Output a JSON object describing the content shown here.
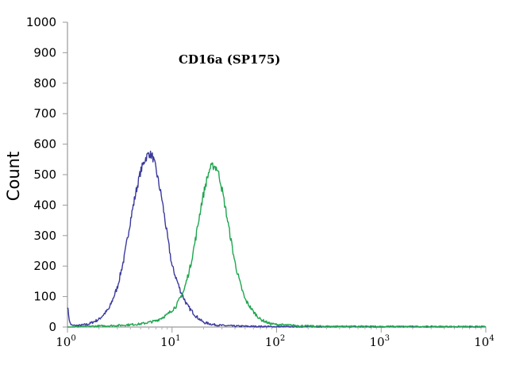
{
  "chart_data": {
    "type": "line",
    "title": "CD16a (SP175)",
    "xlabel": "",
    "ylabel": "Count",
    "x_scale": "log",
    "xlim": [
      1,
      10000
    ],
    "ylim": [
      0,
      1000
    ],
    "x_ticks": [
      {
        "base": "10",
        "exp": "0",
        "value": 1
      },
      {
        "base": "10",
        "exp": "1",
        "value": 10
      },
      {
        "base": "10",
        "exp": "2",
        "value": 100
      },
      {
        "base": "10",
        "exp": "3",
        "value": 1000
      },
      {
        "base": "10",
        "exp": "4",
        "value": 10000
      }
    ],
    "y_ticks": [
      "0",
      "100",
      "200",
      "300",
      "400",
      "500",
      "600",
      "700",
      "800",
      "900",
      "1000"
    ],
    "grid": false,
    "legend": "none",
    "series": [
      {
        "color": "#3a3a9c",
        "x": [
          1,
          1.05,
          1.1,
          1.3,
          1.6,
          2,
          2.5,
          3,
          3.5,
          4,
          4.5,
          5,
          5.5,
          6,
          6.5,
          7,
          8,
          9,
          10,
          12,
          14,
          17,
          20,
          25,
          30,
          40,
          60,
          100,
          10000
        ],
        "y": [
          70,
          15,
          5,
          5,
          10,
          25,
          60,
          130,
          230,
          350,
          440,
          510,
          550,
          570,
          560,
          520,
          420,
          300,
          200,
          120,
          70,
          35,
          15,
          8,
          5,
          3,
          2,
          1,
          0
        ]
      },
      {
        "color": "#1fa64f",
        "x": [
          1,
          3,
          5,
          7,
          9,
          11,
          13,
          15,
          17,
          19,
          21,
          23,
          25,
          27,
          29,
          32,
          36,
          40,
          45,
          50,
          60,
          70,
          85,
          100,
          150,
          200,
          300,
          10000
        ],
        "y": [
          0,
          5,
          10,
          20,
          40,
          70,
          120,
          200,
          300,
          400,
          470,
          520,
          530,
          520,
          480,
          400,
          300,
          210,
          140,
          90,
          50,
          25,
          12,
          8,
          5,
          3,
          2,
          1
        ]
      }
    ]
  }
}
